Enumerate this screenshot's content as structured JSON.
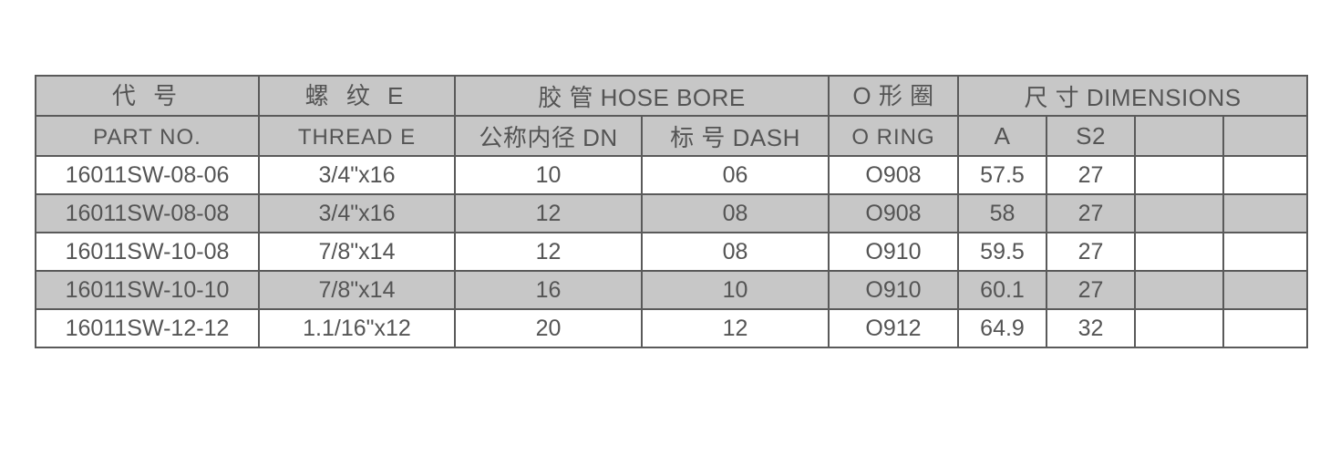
{
  "table": {
    "background_color": "#ffffff",
    "header_bg": "#c7c7c7",
    "alt_row_bg": "#c7c7c7",
    "border_color": "#5a5a5a",
    "text_color": "#545454",
    "header_fontsize_main": 26,
    "header_fontsize_sub": 24,
    "data_fontsize": 25,
    "columns": {
      "part": {
        "zh": "代  号",
        "en": "PART NO."
      },
      "thread": {
        "zh": "螺  纹 E",
        "en": "THREAD  E"
      },
      "hose": {
        "group": "胶 管  HOSE BORE",
        "dn": "公称内径 DN",
        "dash": "标 号 DASH"
      },
      "oring": {
        "zh": "O 形 圈",
        "en": "O  RING"
      },
      "dims": {
        "group": "尺  寸  DIMENSIONS",
        "a": "A",
        "s2": "S2",
        "e1": "",
        "e2": ""
      }
    },
    "rows": [
      {
        "part": "16011SW-08-06",
        "thread": "3/4\"x16",
        "dn": "10",
        "dash": "06",
        "oring": "O908",
        "a": "57.5",
        "s2": "27",
        "e1": "",
        "e2": ""
      },
      {
        "part": "16011SW-08-08",
        "thread": "3/4\"x16",
        "dn": "12",
        "dash": "08",
        "oring": "O908",
        "a": "58",
        "s2": "27",
        "e1": "",
        "e2": ""
      },
      {
        "part": "16011SW-10-08",
        "thread": "7/8\"x14",
        "dn": "12",
        "dash": "08",
        "oring": "O910",
        "a": "59.5",
        "s2": "27",
        "e1": "",
        "e2": ""
      },
      {
        "part": "16011SW-10-10",
        "thread": "7/8\"x14",
        "dn": "16",
        "dash": "10",
        "oring": "O910",
        "a": "60.1",
        "s2": "27",
        "e1": "",
        "e2": ""
      },
      {
        "part": "16011SW-12-12",
        "thread": "1.1/16\"x12",
        "dn": "20",
        "dash": "12",
        "oring": "O912",
        "a": "64.9",
        "s2": "32",
        "e1": "",
        "e2": ""
      }
    ]
  }
}
